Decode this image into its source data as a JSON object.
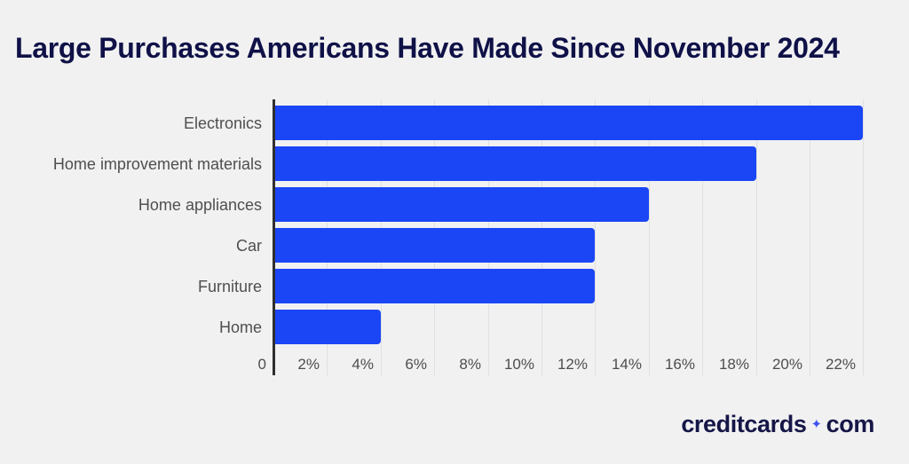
{
  "title": "Large Purchases Americans Have Made Since November 2024",
  "chart_data": {
    "type": "bar",
    "orientation": "horizontal",
    "title": "Large Purchases Americans Have Made Since November 2024",
    "categories": [
      "Electronics",
      "Home improvement materials",
      "Home appliances",
      "Car",
      "Furniture",
      "Home"
    ],
    "values": [
      22,
      18,
      14,
      12,
      12,
      4
    ],
    "unit": "%",
    "xlabel": "",
    "ylabel": "",
    "x_axis": {
      "min": 0,
      "max": 22,
      "tick_step": 2,
      "tick_labels": [
        "0",
        "2%",
        "4%",
        "6%",
        "8%",
        "10%",
        "12%",
        "14%",
        "16%",
        "18%",
        "20%",
        "22%"
      ]
    },
    "grid": true,
    "legend": false,
    "colors": {
      "bar": "#1b46f5",
      "axis_line": "#2f2f2f",
      "gridline": "#e0e0e2",
      "category_label": "#4f4f4f",
      "tick_label": "#4d4d4d"
    }
  },
  "colors": {
    "background": "#f1f1f2",
    "title_text": "#0f1147",
    "logo_text": "#161747",
    "logo_sparkle": "#4053ee"
  },
  "footer": {
    "brand_left": "creditcards",
    "sparkle_icon": "✦",
    "brand_right": "com"
  }
}
